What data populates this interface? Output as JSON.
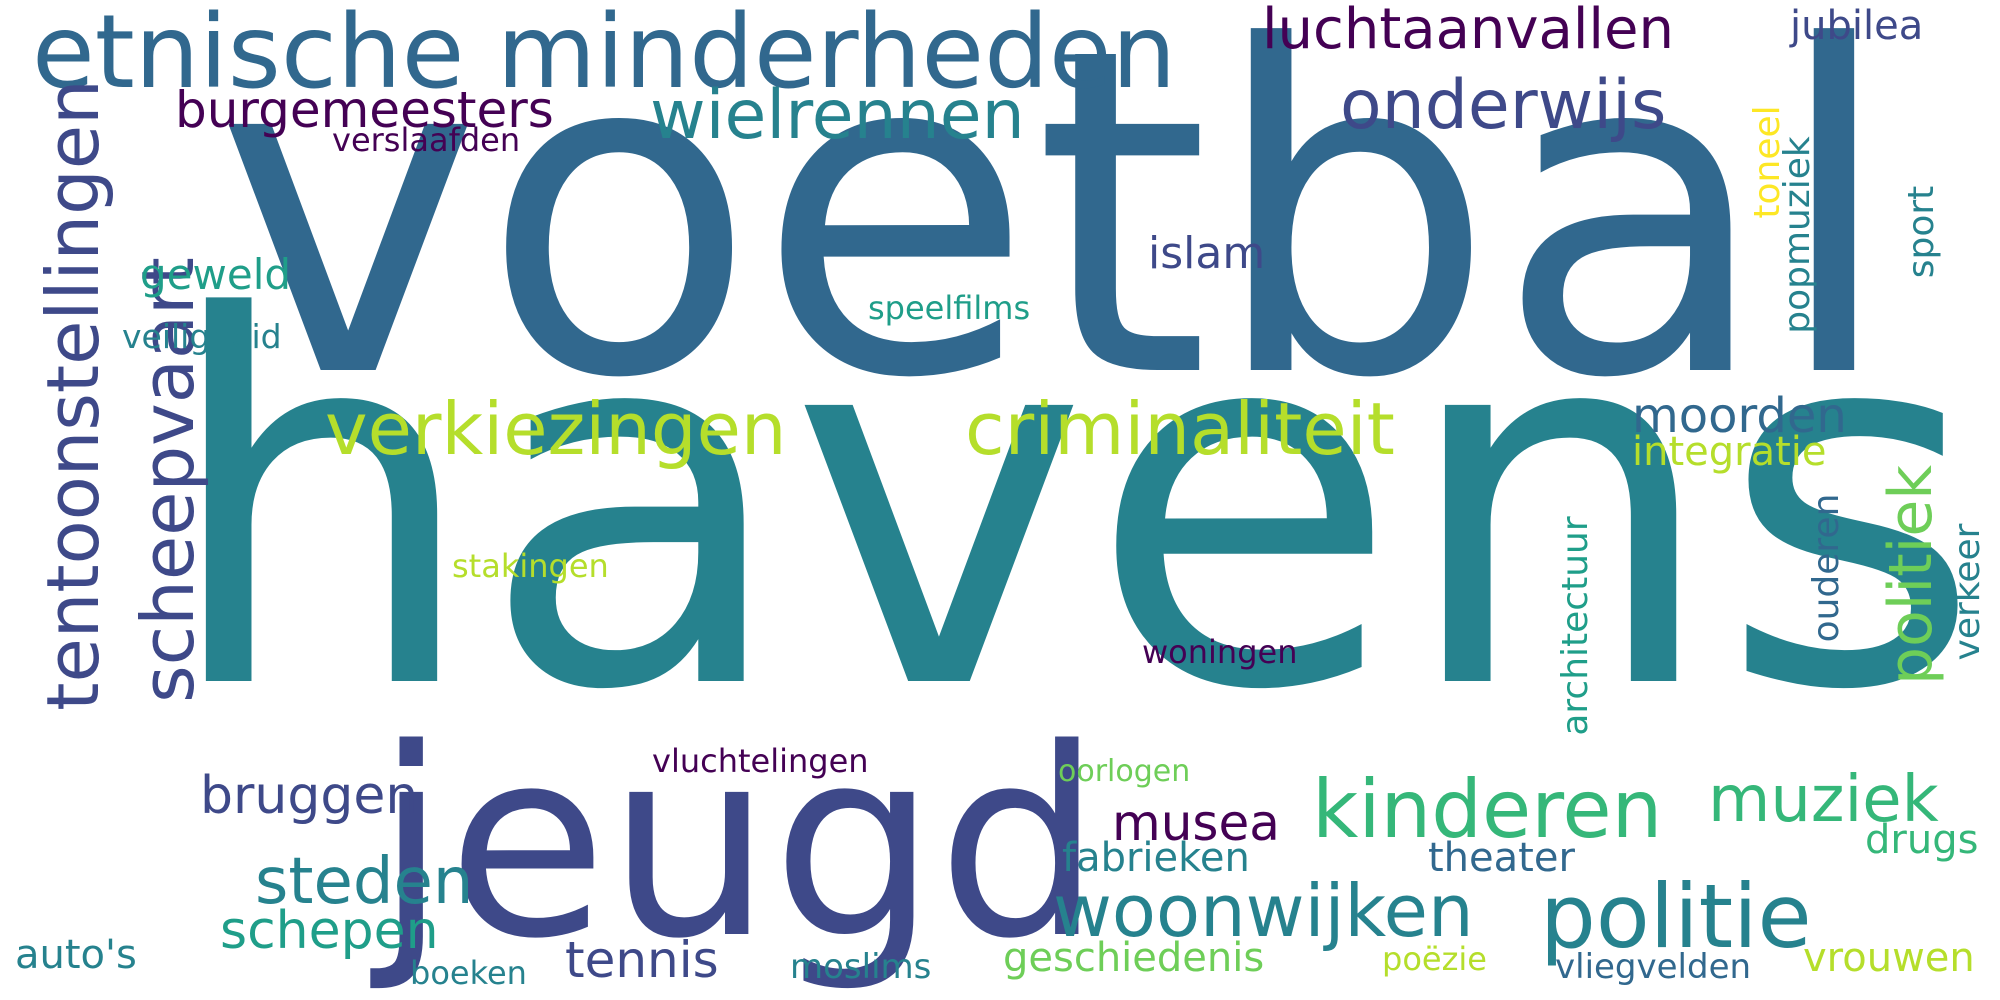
{
  "colors": {
    "background": "#ffffff",
    "deep_purple": "#440154",
    "indigo": "#3e4989",
    "blue": "#31688e",
    "teal": "#26828e",
    "green_teal": "#1f9e89",
    "green": "#35b779",
    "lime": "#6ece58",
    "yellow_green": "#b5de2b",
    "yellow": "#fde725"
  },
  "words": {
    "voetbal": "voetbal",
    "havens": "havens",
    "jeugd": "jeugd",
    "etnische_minderheden": "etnische minderheden",
    "tentoonstellingen": "tentoonstellingen",
    "scheepvaart": "scheepvaart",
    "luchtaanvallen": "luchtaanvallen",
    "jubilea": "jubilea",
    "burgemeesters": "burgemeesters",
    "verslaafden": "verslaafden",
    "wielrennen": "wielrennen",
    "onderwijs": "onderwijs",
    "toneel": "toneel",
    "popmuziek": "popmuziek",
    "sport": "sport",
    "geweld": "geweld",
    "islam": "islam",
    "speelfilms": "speelfilms",
    "veiligheid": "veiligheid",
    "verkiezingen": "verkiezingen",
    "criminaliteit": "criminaliteit",
    "moorden": "moorden",
    "integratie": "integratie",
    "politiek": "politiek",
    "architectuur": "architectuur",
    "ouderen": "ouderen",
    "verkeer": "verkeer",
    "stakingen": "stakingen",
    "woningen": "woningen",
    "vluchtelingen": "vluchtelingen",
    "oorlogen": "oorlogen",
    "bruggen": "bruggen",
    "kinderen": "kinderen",
    "muziek": "muziek",
    "musea": "musea",
    "drugs": "drugs",
    "steden": "steden",
    "fabrieken": "fabrieken",
    "theater": "theater",
    "woonwijken": "woonwijken",
    "politie": "politie",
    "schepen": "schepen",
    "autos": "auto's",
    "tennis": "tennis",
    "geschiedenis": "geschiedenis",
    "vrouwen": "vrouwen",
    "boeken": "boeken",
    "moslims": "moslims",
    "poezie": "poëzie",
    "vliegvelden": "vliegvelden"
  }
}
